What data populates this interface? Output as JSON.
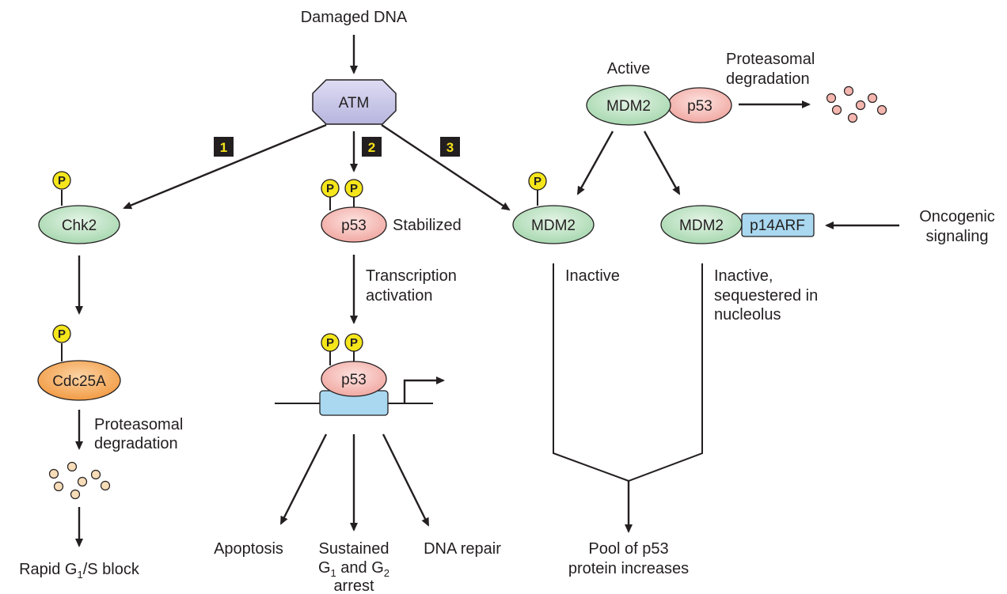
{
  "source_label": "Damaged DNA",
  "kinase": "ATM",
  "pathway_numbers": [
    "1",
    "2",
    "3"
  ],
  "phospho_label": "P",
  "chk2": "Chk2",
  "cdc25a": "Cdc25A",
  "p53": "p53",
  "stabilized": "Stabilized",
  "transcription_line1": "Transcription",
  "transcription_line2": "activation",
  "proteasomal_line1": "Proteasomal",
  "proteasomal_line2": "degradation",
  "rapid_block_prefix": "Rapid G",
  "rapid_block_sub": "1",
  "rapid_block_suffix": "/S block",
  "apoptosis": "Apoptosis",
  "sustained_line1": "Sustained",
  "sustained_g1": "G",
  "sustained_sub1": "1",
  "sustained_and": " and G",
  "sustained_sub2": "2",
  "sustained_line3": "arrest",
  "dna_repair": "DNA repair",
  "active": "Active",
  "mdm2": "MDM2",
  "inactive": "Inactive",
  "inactive_seq_line1": "Inactive,",
  "inactive_seq_line2": "sequestered in",
  "inactive_seq_line3": "nucleolus",
  "p14arf": "p14ARF",
  "oncogenic_line1": "Oncogenic",
  "oncogenic_line2": "signaling",
  "pool_line1": "Pool of p53",
  "pool_line2": "protein increases",
  "colors": {
    "atm_fill": "#c9c8e8",
    "green_fill": "#bfe3c4",
    "pink_fill": "#f7c3bf",
    "orange_fill": "#f6b26b",
    "yellow_fill": "#f5e61b",
    "blue_fill": "#a9d8f0",
    "dot_pink": "#f4b6ae",
    "dot_tan": "#f7dcb8"
  }
}
